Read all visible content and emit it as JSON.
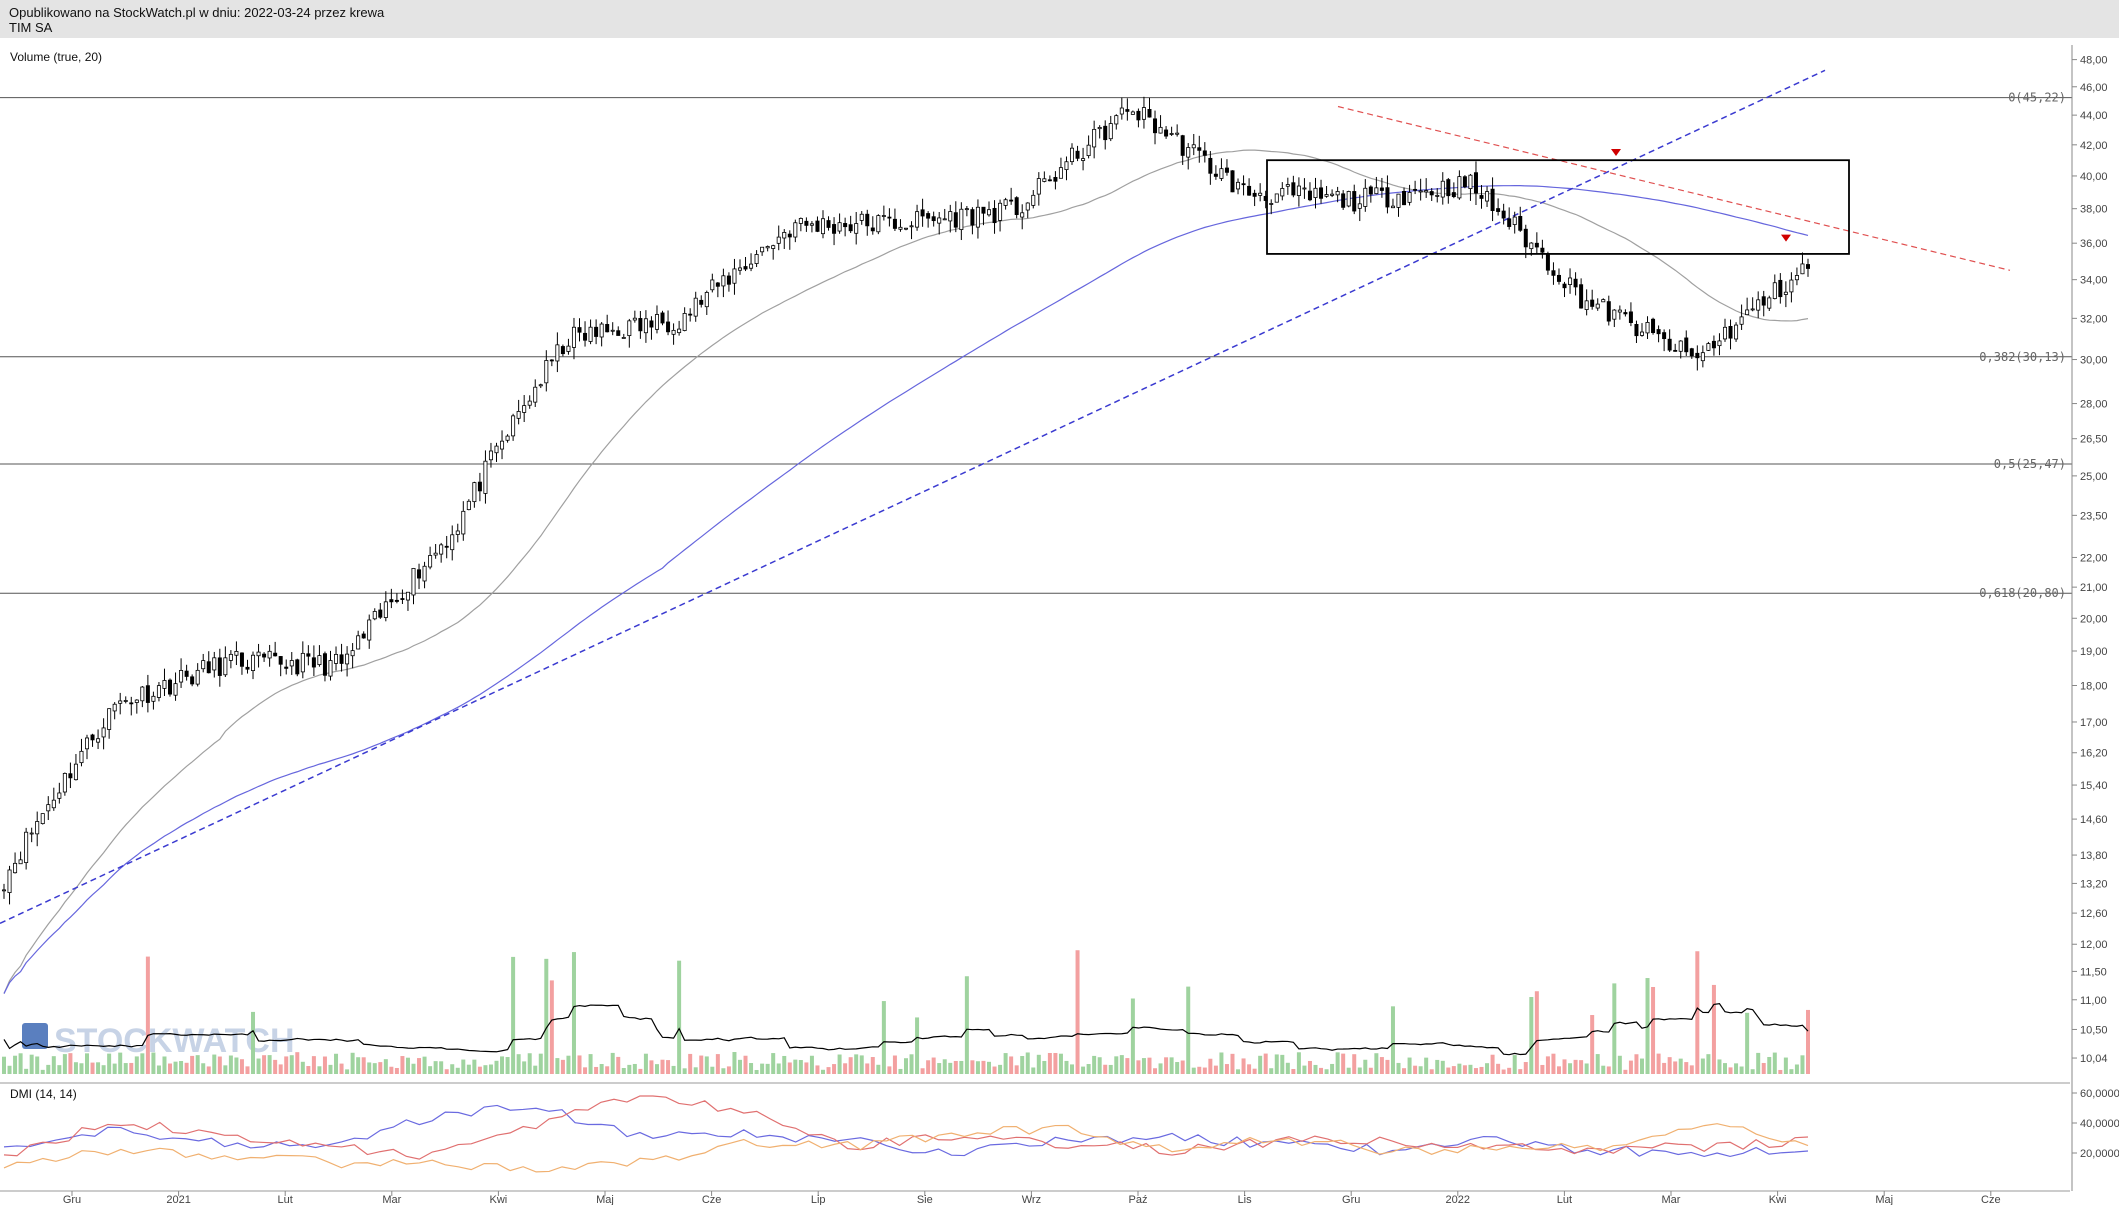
{
  "header": {
    "published": "Opublikowano na StockWatch.pl w dniu: 2022-03-24 przez krewa",
    "ticker": "TIM SA"
  },
  "watermark": {
    "text": "STOCKWATCH"
  },
  "colors": {
    "candle_up": "#ffffff",
    "candle_down": "#000000",
    "vol_up": "#9fd39f",
    "vol_down": "#f3a0a0",
    "sma_short": "#a0a0a0",
    "sma_long": "#6666dd",
    "trend_up": "#3a3ad0",
    "trend_down": "#e05050",
    "dmi_plus": "#6a6ae0",
    "dmi_minus": "#e07070",
    "adx": "#f0b070",
    "signal": "#d00000"
  },
  "chart_data": [
    {
      "type": "candlestick",
      "title": "TIM SA",
      "y_scale": "log",
      "ylim": [
        9.9,
        48.5
      ],
      "y_ticks": [
        "48,00",
        "46,00",
        "44,00",
        "42,00",
        "40,00",
        "38,00",
        "36,00",
        "34,00",
        "32,00",
        "30,00",
        "28,00",
        "26,50",
        "25,00",
        "23,50",
        "22,00",
        "21,00",
        "20,00",
        "19,00",
        "18,00",
        "17,00",
        "16,20",
        "15,40",
        "14,60",
        "13,80",
        "13,20",
        "12,60",
        "12,00",
        "11,50",
        "11,00",
        "10,50",
        "10,04"
      ],
      "x_ticks": [
        "Gru",
        "2021",
        "Lut",
        "Mar",
        "Kwi",
        "Maj",
        "Cze",
        "Lip",
        "Sie",
        "Wrz",
        "Paź",
        "Lis",
        "Gru",
        "2022",
        "Lut",
        "Mar",
        "Kwi",
        "Maj",
        "Cze"
      ],
      "key_prices": [
        {
          "date": "2020-12",
          "close": 13.3
        },
        {
          "date": "2021-01",
          "close": 17.5
        },
        {
          "date": "2021-02",
          "close": 18.7
        },
        {
          "date": "2021-03",
          "close": 18.6
        },
        {
          "date": "2021-04",
          "close": 23.0
        },
        {
          "date": "2021-05",
          "close": 31.0
        },
        {
          "date": "2021-06",
          "close": 32.0
        },
        {
          "date": "2021-07",
          "close": 37.0
        },
        {
          "date": "2021-08",
          "close": 37.2
        },
        {
          "date": "2021-09",
          "close": 38.0
        },
        {
          "date": "2021-10",
          "close": 44.5
        },
        {
          "date": "2021-11",
          "close": 39.0
        },
        {
          "date": "2021-12",
          "close": 38.5
        },
        {
          "date": "2022-01",
          "close": 39.5
        },
        {
          "date": "2022-02",
          "close": 33.0
        },
        {
          "date": "2022-03-08",
          "close": 30.0
        },
        {
          "date": "2022-03-24",
          "close": 34.7
        }
      ],
      "fibonacci_levels": [
        {
          "label": "0(45,22)",
          "value": 45.22
        },
        {
          "label": "0,382(30,13)",
          "value": 30.13
        },
        {
          "label": "0,5(25,47)",
          "value": 25.47
        },
        {
          "label": "0,618(20,80)",
          "value": 20.8
        }
      ],
      "consolidation_box": {
        "from": "2021-11",
        "to": "2022-03-24",
        "low": 35.4,
        "high": 41.0
      }
    },
    {
      "type": "bar",
      "title": "Volume (true, 20)",
      "note": "volume bars coloured by candle direction with a 20-period average line"
    },
    {
      "type": "line",
      "title": "DMI (14, 14)",
      "ylim": [
        0,
        60
      ],
      "y_ticks": [
        "60,0000",
        "40,0000",
        "20,0000"
      ],
      "series": [
        {
          "values": [
            24,
            36,
            28,
            22,
            44,
            52,
            30,
            32,
            28,
            20,
            30,
            30,
            26,
            22,
            28,
            22,
            20,
            24
          ]
        },
        {
          "values": [
            18,
            40,
            34,
            24,
            18,
            38,
            60,
            48,
            24,
            32,
            26,
            22,
            28,
            28,
            24,
            22,
            24,
            28
          ]
        },
        {
          "values": [
            12,
            22,
            18,
            14,
            12,
            10,
            14,
            26,
            24,
            34,
            36,
            22,
            30,
            22,
            22,
            24,
            40,
            26
          ]
        }
      ]
    }
  ]
}
